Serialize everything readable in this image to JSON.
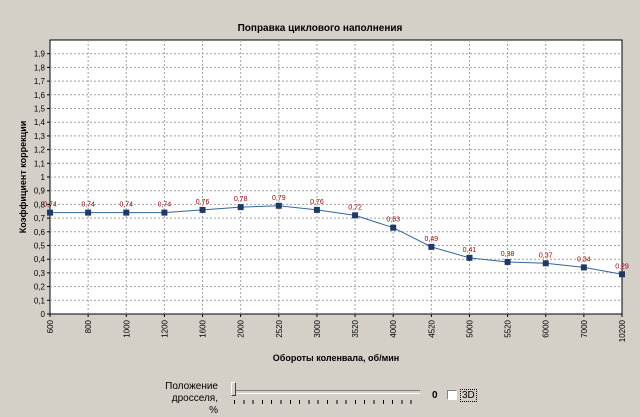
{
  "chart_data": {
    "type": "line",
    "title": "Поправка циклового наполнения",
    "xlabel": "Обороты коленвала, об/мин",
    "ylabel": "Коэффициент коррекции",
    "categories": [
      "600",
      "800",
      "1000",
      "1200",
      "1600",
      "2000",
      "2520",
      "3000",
      "3520",
      "4000",
      "4520",
      "5000",
      "5520",
      "6000",
      "7000",
      "10200"
    ],
    "values": [
      0.74,
      0.74,
      0.74,
      0.74,
      0.76,
      0.78,
      0.79,
      0.76,
      0.72,
      0.63,
      0.49,
      0.41,
      0.38,
      0.37,
      0.34,
      0.29
    ],
    "value_labels": [
      "0,74",
      "0,74",
      "0,74",
      "0,74",
      "0,76",
      "0,78",
      "0,79",
      "0,76",
      "0,72",
      "0,63",
      "0,49",
      "0,41",
      "0,38",
      "0,37",
      "0,34",
      "0,29"
    ],
    "ylim": [
      0,
      2
    ],
    "y_ticks": [
      0,
      0.1,
      0.2,
      0.3,
      0.4,
      0.5,
      0.6,
      0.7,
      0.8,
      0.9,
      1,
      1.1,
      1.2,
      1.3,
      1.4,
      1.5,
      1.6,
      1.7,
      1.8,
      1.9
    ],
    "y_tick_labels": [
      "0",
      "0,1",
      "0,2",
      "0,3",
      "0,4",
      "0,5",
      "0,6",
      "0,7",
      "0,8",
      "0,9",
      "1",
      "1,1",
      "1,2",
      "1,3",
      "1,4",
      "1,5",
      "1,6",
      "1,7",
      "1,8",
      "1,9"
    ],
    "grid": true,
    "line_color": "#336699",
    "marker_color": "#1f3864",
    "label_color": "#990000",
    "background": "#ffffff"
  },
  "controls": {
    "throttle_label_line1": "Положение дросселя,",
    "throttle_label_line2": "%",
    "throttle_value": "0",
    "throttle_level_percent": 0,
    "checkbox_3d_label": "3D",
    "checkbox_3d_checked": false
  }
}
